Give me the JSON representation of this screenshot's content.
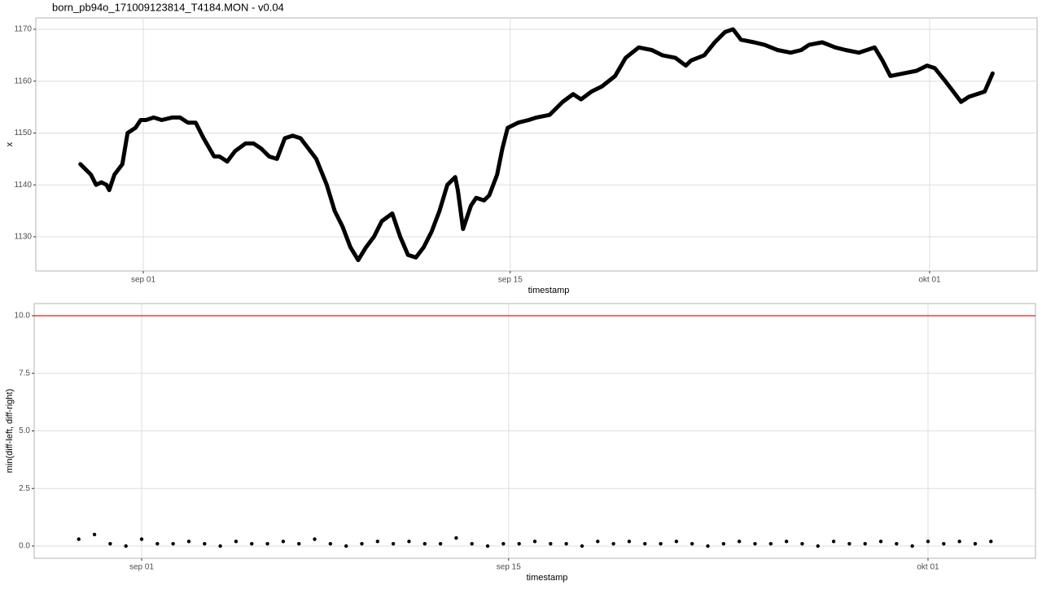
{
  "chart_data": [
    {
      "type": "line",
      "title": "born_pb94o_171009123814_T4184.MON - v0.04",
      "x_label": "timestamp",
      "y_label": "x",
      "color": "#000000",
      "grid": true,
      "xlim": [
        239.9,
        278.1
      ],
      "ylim": [
        1123.4,
        1172.2
      ],
      "xticks": [
        {
          "value": 244,
          "label": "sep 01"
        },
        {
          "value": 258,
          "label": "sep 15"
        },
        {
          "value": 274,
          "label": "okt 01"
        }
      ],
      "yticks": [
        1130,
        1140,
        1150,
        1160,
        1170
      ],
      "x": [
        241.6,
        242.0,
        242.1,
        242.2,
        242.4,
        242.6,
        242.7,
        242.9,
        243.2,
        243.4,
        243.7,
        243.9,
        244.1,
        244.4,
        244.7,
        245.1,
        245.4,
        245.7,
        246.0,
        246.3,
        246.7,
        246.9,
        247.2,
        247.5,
        247.9,
        248.2,
        248.5,
        248.8,
        249.1,
        249.4,
        249.7,
        250.0,
        250.3,
        250.6,
        251.0,
        251.3,
        251.6,
        251.9,
        252.2,
        252.5,
        252.8,
        253.1,
        253.5,
        253.8,
        254.1,
        254.4,
        254.7,
        255.0,
        255.3,
        255.6,
        255.9,
        256.0,
        256.2,
        256.5,
        256.7,
        257.0,
        257.2,
        257.5,
        257.7,
        257.9,
        258.3,
        258.7,
        259.0,
        259.5,
        260.0,
        260.4,
        260.7,
        261.1,
        261.5,
        262.0,
        262.4,
        262.9,
        263.4,
        263.8,
        264.3,
        264.7,
        264.9,
        265.4,
        265.8,
        266.2,
        266.5,
        266.8,
        267.3,
        267.7,
        268.2,
        268.7,
        269.1,
        269.4,
        269.9,
        270.4,
        270.8,
        271.3,
        271.9,
        272.2,
        272.5,
        273.0,
        273.5,
        273.9,
        274.2,
        274.6,
        274.9,
        275.2,
        275.5,
        275.8,
        276.1,
        276.4
      ],
      "values": [
        1144,
        1142,
        1141,
        1140,
        1140.5,
        1140,
        1139,
        1142,
        1144,
        1150,
        1151,
        1152.5,
        1152.5,
        1153,
        1152.5,
        1153,
        1153,
        1152,
        1152,
        1149,
        1145.5,
        1145.5,
        1144.5,
        1146.5,
        1148,
        1148,
        1147,
        1145.5,
        1145,
        1149,
        1149.5,
        1149,
        1147,
        1145,
        1140,
        1135,
        1132,
        1128,
        1125.5,
        1128,
        1130,
        1133,
        1134.5,
        1130,
        1126.5,
        1126,
        1128,
        1131,
        1135,
        1140,
        1141.5,
        1139,
        1131.5,
        1136,
        1137.5,
        1137,
        1138,
        1142,
        1147,
        1151,
        1152,
        1152.5,
        1153,
        1153.5,
        1156,
        1157.5,
        1156.5,
        1158,
        1159,
        1161,
        1164.5,
        1166.5,
        1166,
        1165,
        1164.5,
        1163,
        1164,
        1165,
        1167.5,
        1169.5,
        1170,
        1168,
        1167.5,
        1167,
        1166,
        1165.5,
        1166,
        1167,
        1167.5,
        1166.5,
        1166,
        1165.5,
        1166.5,
        1164,
        1161,
        1161.5,
        1162,
        1163,
        1162.5,
        1160,
        1158,
        1156,
        1157,
        1157.5,
        1158,
        1161.5
      ]
    },
    {
      "type": "scatter",
      "x_label": "timestamp",
      "y_label": "min(diff-left, diff-right)",
      "color": "#000000",
      "grid": true,
      "hline": {
        "value": 10,
        "color": "#e41a1c"
      },
      "xlim": [
        239.9,
        278.1
      ],
      "ylim": [
        -0.53,
        10.53
      ],
      "xticks": [
        {
          "value": 244,
          "label": "sep 01"
        },
        {
          "value": 258,
          "label": "sep 15"
        },
        {
          "value": 274,
          "label": "okt 01"
        }
      ],
      "yticks": [
        {
          "value": 0,
          "label": "0.0"
        },
        2.5,
        {
          "value": 5,
          "label": "5.0"
        },
        7.5,
        {
          "value": 10,
          "label": "10.0"
        }
      ],
      "x": [
        241.6,
        242.2,
        242.8,
        243.4,
        244.0,
        244.6,
        245.2,
        245.8,
        246.4,
        247.0,
        247.6,
        248.2,
        248.8,
        249.4,
        250.0,
        250.6,
        251.2,
        251.8,
        252.4,
        253.0,
        253.6,
        254.2,
        254.8,
        255.4,
        256.0,
        256.6,
        257.2,
        257.8,
        258.4,
        259.0,
        259.6,
        260.2,
        260.8,
        261.4,
        262.0,
        262.6,
        263.2,
        263.8,
        264.4,
        265.0,
        265.6,
        266.2,
        266.8,
        267.4,
        268.0,
        268.6,
        269.2,
        269.8,
        270.4,
        271.0,
        271.6,
        272.2,
        272.8,
        273.4,
        274.0,
        274.6,
        275.2,
        275.8,
        276.4
      ],
      "values": [
        0.3,
        0.5,
        0.1,
        0.0,
        0.3,
        0.1,
        0.1,
        0.2,
        0.1,
        0.0,
        0.2,
        0.1,
        0.1,
        0.2,
        0.1,
        0.3,
        0.1,
        0.0,
        0.1,
        0.2,
        0.1,
        0.2,
        0.1,
        0.1,
        0.35,
        0.1,
        0.0,
        0.1,
        0.1,
        0.2,
        0.1,
        0.1,
        0.0,
        0.2,
        0.1,
        0.2,
        0.1,
        0.1,
        0.2,
        0.1,
        0.0,
        0.1,
        0.2,
        0.1,
        0.1,
        0.2,
        0.1,
        0.0,
        0.2,
        0.1,
        0.1,
        0.2,
        0.1,
        0.0,
        0.2,
        0.1,
        0.2,
        0.1,
        0.2
      ]
    }
  ]
}
